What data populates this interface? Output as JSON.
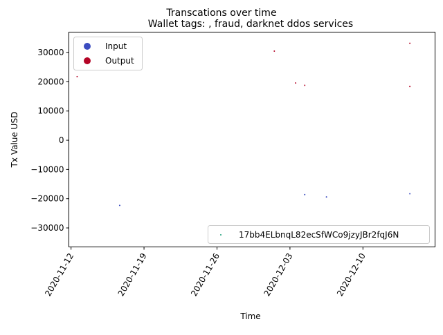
{
  "chart_data": {
    "type": "scatter",
    "suptitle": "Transcations over time",
    "title": "Wallet tags: , fraud, darknet ddos services",
    "xlabel": "Time",
    "ylabel": "Tx Value USD",
    "xlim": [
      "2020-11-11T19:00",
      "2020-12-16T22:00"
    ],
    "ylim": [
      -36500,
      37000
    ],
    "x_ticks": [
      "2020-11-12",
      "2020-11-19",
      "2020-11-26",
      "2020-12-03",
      "2020-12-10"
    ],
    "y_ticks": [
      30000,
      20000,
      10000,
      0,
      -10000,
      -20000,
      -30000
    ],
    "y_tick_labels": [
      "30000",
      "20000",
      "10000",
      "0",
      "−10000",
      "−20000",
      "−30000"
    ],
    "grid": false,
    "colors": {
      "input": "#3b4cc0",
      "output": "#b40426",
      "wallet": "#1a9e77"
    },
    "series": [
      {
        "name": "Input",
        "color": "#3b4cc0",
        "points": [
          {
            "x": "2020-11-16T16:00",
            "y": -22300
          },
          {
            "x": "2020-12-04T10:00",
            "y": -18600
          },
          {
            "x": "2020-12-06T12:00",
            "y": -19400
          },
          {
            "x": "2020-12-14T12:00",
            "y": -18300
          }
        ]
      },
      {
        "name": "Output",
        "color": "#b40426",
        "points": [
          {
            "x": "2020-11-12T14:00",
            "y": 21800
          },
          {
            "x": "2020-12-01T12:00",
            "y": 30500
          },
          {
            "x": "2020-12-03T13:00",
            "y": 19600
          },
          {
            "x": "2020-12-04T10:00",
            "y": 18800
          },
          {
            "x": "2020-12-14T12:00",
            "y": 33200
          },
          {
            "x": "2020-12-14T12:00",
            "y": 18400
          }
        ]
      }
    ],
    "legends": [
      {
        "placement": "upper-left",
        "entries": [
          "Input",
          "Output"
        ]
      },
      {
        "placement": "lower-right",
        "entries": [
          "17bb4ELbnqL82ecSfWCo9jzyJBr2fqJ6N"
        ]
      }
    ]
  }
}
